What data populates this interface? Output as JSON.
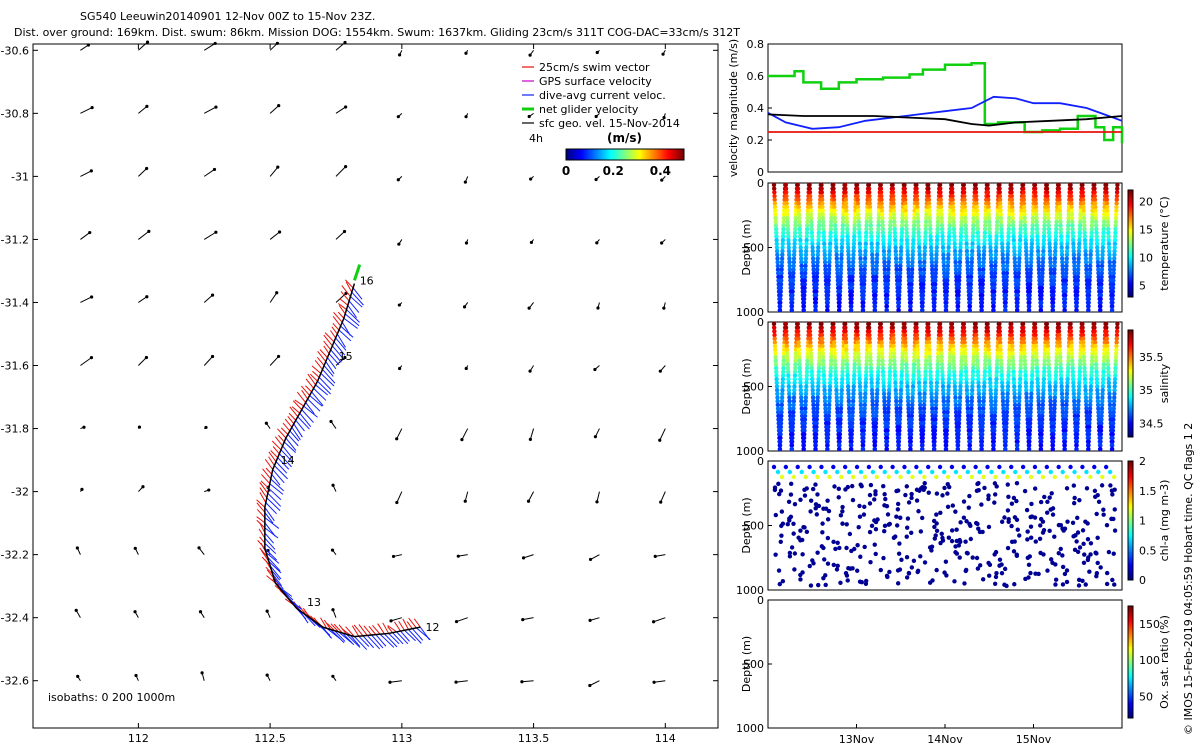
{
  "header": {
    "title": "SG540 Leeuwin20140901 12-Nov 00Z to 15-Nov 23Z.",
    "subtitle": "Dist. over ground: 169km. Dist. swum: 86km. Mission DOG: 1554km. Swum: 1637km. Gliding 23cm/s 311T COG-DAC=33cm/s 312T"
  },
  "copyright": "© IMOS 15-Feb-2019 04:05:59 Hobart time. QC flags 1  2",
  "chart_data": [
    {
      "type": "scatter",
      "name": "map",
      "xlim": [
        111.6,
        114.2
      ],
      "ylim": [
        -32.75,
        -30.58
      ],
      "xticks": [
        "112",
        "112.5",
        "113",
        "113.5",
        "114"
      ],
      "yticks": [
        "-30.6",
        "-30.8",
        "-31",
        "-31.2",
        "-31.4",
        "-31.6",
        "-31.8",
        "-32",
        "-32.2",
        "-32.4",
        "-32.6"
      ],
      "legend": [
        "25cm/s swim vector",
        "GPS surface velocity",
        "dive-avg current veloc.",
        "net glider velocity",
        "sfc geo. vel. 15-Nov-2014"
      ],
      "legend_colors": [
        "#e8120c",
        "#c000c0",
        "#1020ff",
        "#10d010",
        "#000000"
      ],
      "colorbar": {
        "label": "(m/s)",
        "ticks": [
          "0",
          "0.2",
          "0.4"
        ],
        "range": [
          0,
          0.5
        ]
      },
      "time_marker": "4h",
      "isobaths_label": "isobaths: 0   200  1000m",
      "track": [
        [
          113.07,
          -32.43
        ],
        [
          112.95,
          -32.45
        ],
        [
          112.82,
          -32.46
        ],
        [
          112.7,
          -32.43
        ],
        [
          112.6,
          -32.37
        ],
        [
          112.52,
          -32.29
        ],
        [
          112.48,
          -32.18
        ],
        [
          112.48,
          -32.05
        ],
        [
          112.51,
          -31.93
        ],
        [
          112.56,
          -31.83
        ],
        [
          112.62,
          -31.74
        ],
        [
          112.68,
          -31.65
        ],
        [
          112.73,
          -31.55
        ],
        [
          112.78,
          -31.45
        ],
        [
          112.82,
          -31.34
        ]
      ],
      "day_labels": [
        {
          "text": "12",
          "lon": 113.09,
          "lat": -32.43
        },
        {
          "text": "13",
          "lon": 112.64,
          "lat": -32.35
        },
        {
          "text": "14",
          "lon": 112.54,
          "lat": -31.9
        },
        {
          "text": "15",
          "lon": 112.76,
          "lat": -31.57
        },
        {
          "text": "16",
          "lon": 112.84,
          "lat": -31.33
        }
      ]
    },
    {
      "type": "line",
      "name": "velocity",
      "ylabel": "velocity magnitude (m/s)",
      "ylim": [
        0,
        0.8
      ],
      "yticks": [
        "0",
        "0.2",
        "0.4",
        "0.6",
        "0.8"
      ],
      "series": [
        {
          "name": "net glider velocity",
          "color": "#10d010",
          "x": [
            12.0,
            12.3,
            12.4,
            12.6,
            12.8,
            13.0,
            13.3,
            13.6,
            13.75,
            14.0,
            14.3,
            14.45,
            14.6,
            14.9,
            15.1,
            15.3,
            15.5,
            15.7,
            15.8,
            15.9,
            16.0
          ],
          "y": [
            0.6,
            0.63,
            0.56,
            0.52,
            0.56,
            0.58,
            0.59,
            0.61,
            0.64,
            0.67,
            0.68,
            0.3,
            0.31,
            0.25,
            0.26,
            0.27,
            0.35,
            0.28,
            0.2,
            0.28,
            0.18
          ]
        },
        {
          "name": "dive-avg current veloc.",
          "color": "#1020ff",
          "x": [
            12.0,
            12.2,
            12.5,
            12.8,
            13.1,
            13.4,
            13.7,
            14.0,
            14.3,
            14.55,
            14.8,
            15.0,
            15.3,
            15.6,
            15.8,
            16.0
          ],
          "y": [
            0.37,
            0.31,
            0.27,
            0.28,
            0.32,
            0.34,
            0.36,
            0.38,
            0.4,
            0.47,
            0.46,
            0.43,
            0.43,
            0.4,
            0.36,
            0.32
          ]
        },
        {
          "name": "sfc geo. vel. 15-Nov-2014",
          "color": "#000000",
          "x": [
            12.0,
            12.4,
            12.8,
            13.2,
            13.6,
            14.0,
            14.3,
            14.5,
            14.8,
            15.2,
            15.6,
            16.0
          ],
          "y": [
            0.36,
            0.35,
            0.35,
            0.35,
            0.34,
            0.33,
            0.3,
            0.29,
            0.31,
            0.32,
            0.33,
            0.35
          ]
        },
        {
          "name": "25cm/s swim vector",
          "color": "#e8120c",
          "x": [
            12.0,
            16.0
          ],
          "y": [
            0.25,
            0.25
          ]
        }
      ]
    },
    {
      "type": "scatter",
      "name": "temperature",
      "ylabel": "Depth (m)",
      "yticks": [
        "0",
        "500",
        "1000"
      ],
      "colorbar_label": "temperature (°C)",
      "cticks": [
        "5",
        "10",
        "15",
        "20"
      ],
      "crange": [
        3,
        22
      ],
      "profiles": 29
    },
    {
      "type": "scatter",
      "name": "salinity",
      "ylabel": "Depth (m)",
      "yticks": [
        "0",
        "500",
        "1000"
      ],
      "colorbar_label": "salinity",
      "cticks": [
        "34.5",
        "35",
        "35.5"
      ],
      "crange": [
        34.3,
        35.9
      ],
      "profiles": 29
    },
    {
      "type": "scatter",
      "name": "chlorophyll",
      "ylabel": "Depth (m)",
      "yticks": [
        "0",
        "500",
        "1000"
      ],
      "colorbar_label": "chl-a (mg m-3)",
      "cticks": [
        "0",
        "0.5",
        "1",
        "1.5",
        "2"
      ],
      "crange": [
        0,
        2
      ],
      "profiles": 29
    },
    {
      "type": "scatter",
      "name": "oxygen",
      "ylabel": "Depth (m)",
      "yticks": [
        "0",
        "500",
        "1000"
      ],
      "colorbar_label": "Ox. sat. ratio (%)",
      "cticks": [
        "50",
        "100",
        "150"
      ],
      "crange": [
        20,
        175
      ],
      "xticks": [
        "13Nov",
        "14Nov",
        "15Nov"
      ]
    }
  ]
}
